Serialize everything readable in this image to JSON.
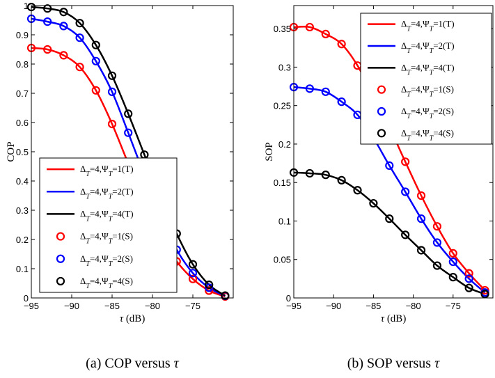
{
  "legend_entries": [
    {
      "label": "Δ_T=4,Ψ_T=1(T)",
      "color": "#ff0000",
      "kind": "line"
    },
    {
      "label": "Δ_T=4,Ψ_T=2(T)",
      "color": "#0000ff",
      "kind": "line"
    },
    {
      "label": "Δ_T=4,Ψ_T=4(T)",
      "color": "#000000",
      "kind": "line"
    },
    {
      "label": "Δ_T=4,Ψ_T=1(S)",
      "color": "#ff0000",
      "kind": "marker"
    },
    {
      "label": "Δ_T=4,Ψ_T=2(S)",
      "color": "#0000ff",
      "kind": "marker"
    },
    {
      "label": "Δ_T=4,Ψ_T=4(S)",
      "color": "#000000",
      "kind": "marker"
    }
  ],
  "chart_data": [
    {
      "type": "line",
      "caption": "(a) COP versus τ",
      "xlabel": "τ (dB)",
      "ylabel": "COP",
      "xlim": [
        -95,
        -70
      ],
      "ylim": [
        0,
        1
      ],
      "xticks": [
        -95,
        -90,
        -85,
        -80,
        -75
      ],
      "yticks": [
        0,
        0.1,
        0.2,
        0.3,
        0.4,
        0.5,
        0.6,
        0.7,
        0.8,
        0.9,
        1
      ],
      "x": [
        -95,
        -93,
        -91,
        -89,
        -87,
        -85,
        -83,
        -81,
        -79,
        -77,
        -75,
        -73,
        -71
      ],
      "series": [
        {
          "name": "Δ_T=4,Ψ_T=1",
          "color": "#ff0000",
          "values": [
            0.855,
            0.85,
            0.83,
            0.79,
            0.71,
            0.595,
            0.46,
            0.33,
            0.21,
            0.125,
            0.065,
            0.025,
            0.005
          ]
        },
        {
          "name": "Δ_T=4,Ψ_T=2",
          "color": "#0000ff",
          "values": [
            0.955,
            0.945,
            0.93,
            0.89,
            0.81,
            0.705,
            0.565,
            0.42,
            0.28,
            0.165,
            0.085,
            0.035,
            0.007
          ]
        },
        {
          "name": "Δ_T=4,Ψ_T=4",
          "color": "#000000",
          "values": [
            0.995,
            0.99,
            0.978,
            0.94,
            0.865,
            0.76,
            0.63,
            0.49,
            0.35,
            0.22,
            0.115,
            0.045,
            0.008
          ]
        }
      ],
      "legend": "lower-left"
    },
    {
      "type": "line",
      "caption": "(b) SOP versus τ",
      "xlabel": "τ (dB)",
      "ylabel": "SOP",
      "xlim": [
        -95,
        -70
      ],
      "ylim": [
        0,
        0.38
      ],
      "xticks": [
        -95,
        -90,
        -85,
        -80,
        -75
      ],
      "yticks": [
        0,
        0.05,
        0.1,
        0.15,
        0.2,
        0.25,
        0.3,
        0.35
      ],
      "ytick_labels": [
        "0",
        "0.05",
        "0.1",
        "0.15",
        "0.2",
        "0.25",
        "0.3",
        "0.35"
      ],
      "x": [
        -95,
        -93,
        -91,
        -89,
        -87,
        -85,
        -83,
        -81,
        -79,
        -77,
        -75,
        -73,
        -71
      ],
      "series": [
        {
          "name": "Δ_T=4,Ψ_T=1",
          "color": "#ff0000",
          "values": [
            0.352,
            0.352,
            0.343,
            0.33,
            0.302,
            0.262,
            0.222,
            0.177,
            0.133,
            0.093,
            0.058,
            0.032,
            0.01
          ]
        },
        {
          "name": "Δ_T=4,Ψ_T=2",
          "color": "#0000ff",
          "values": [
            0.274,
            0.272,
            0.268,
            0.255,
            0.238,
            0.208,
            0.172,
            0.138,
            0.103,
            0.072,
            0.047,
            0.025,
            0.007
          ]
        },
        {
          "name": "Δ_T=4,Ψ_T=4",
          "color": "#000000",
          "values": [
            0.163,
            0.162,
            0.16,
            0.153,
            0.14,
            0.123,
            0.103,
            0.082,
            0.062,
            0.042,
            0.027,
            0.013,
            0.005
          ]
        }
      ],
      "legend": "top-right"
    }
  ]
}
